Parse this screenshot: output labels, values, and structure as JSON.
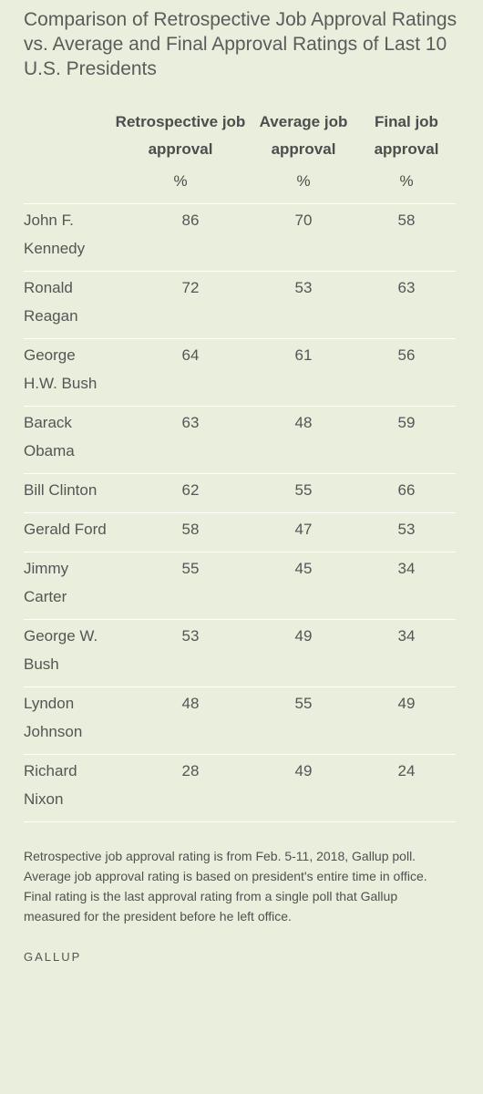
{
  "chart_data": {
    "type": "table",
    "title": "Comparison of Retrospective Job Approval Ratings vs. Average and Final Approval Ratings of Last 10 U.S. Presidents",
    "columns": [
      {
        "label": "Retrospective job approval",
        "unit": "%"
      },
      {
        "label": "Average job approval",
        "unit": "%"
      },
      {
        "label": "Final job approval",
        "unit": "%"
      }
    ],
    "rows": [
      {
        "name": "John F. Kennedy",
        "values": [
          86,
          70,
          58
        ]
      },
      {
        "name": "Ronald Reagan",
        "values": [
          72,
          53,
          63
        ]
      },
      {
        "name": "George H.W. Bush",
        "values": [
          64,
          61,
          56
        ]
      },
      {
        "name": "Barack Obama",
        "values": [
          63,
          48,
          59
        ]
      },
      {
        "name": "Bill Clinton",
        "values": [
          62,
          55,
          66
        ]
      },
      {
        "name": "Gerald Ford",
        "values": [
          58,
          47,
          53
        ]
      },
      {
        "name": "Jimmy Carter",
        "values": [
          55,
          45,
          34
        ]
      },
      {
        "name": "George W. Bush",
        "values": [
          53,
          49,
          34
        ]
      },
      {
        "name": "Lyndon Johnson",
        "values": [
          48,
          55,
          49
        ]
      },
      {
        "name": "Richard Nixon",
        "values": [
          28,
          49,
          24
        ]
      }
    ],
    "note": "Retrospective job approval rating is from Feb. 5-11, 2018, Gallup poll. Average job approval rating is based on president's entire time in office. Final rating is the last approval rating from a single poll that Gallup measured for the president before he left office.",
    "source": "GALLUP"
  },
  "colors": {
    "background": "#e9efdc",
    "row_divider": "#ffffff",
    "text": "#4a4a4a"
  }
}
